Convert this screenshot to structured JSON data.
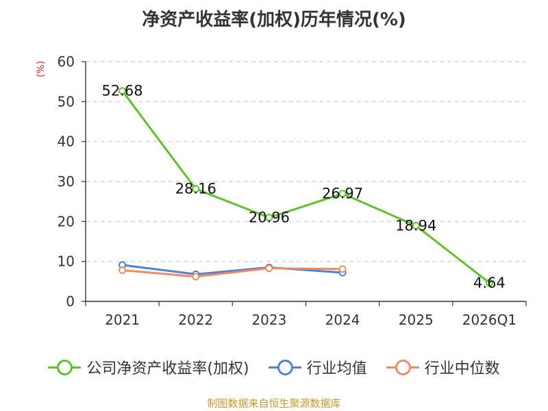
{
  "chart_data": {
    "type": "line",
    "title": "净资产收益率(加权)历年情况(%)",
    "ylabel": "(%)",
    "xlabel": "",
    "categories": [
      "2021",
      "2022",
      "2023",
      "2024",
      "2025",
      "2026Q1"
    ],
    "ylim": [
      0,
      60
    ],
    "yticks": [
      0,
      10,
      20,
      30,
      40,
      50,
      60
    ],
    "grid": true,
    "legend": "bottom",
    "series": [
      {
        "name": "公司净资产收益率(加权)",
        "color": "#5cc12a",
        "values": [
          52.68,
          28.16,
          20.96,
          26.97,
          18.94,
          4.64
        ],
        "labels": [
          "52.68",
          "28.16",
          "20.96",
          "26.97",
          "18.94",
          "4.64"
        ]
      },
      {
        "name": "行业均值",
        "color": "#4f7fd9",
        "values": [
          9.1,
          6.8,
          8.5,
          7.2,
          null,
          null
        ]
      },
      {
        "name": "行业中位数",
        "color": "#f18a5e",
        "values": [
          7.8,
          6.2,
          8.3,
          8.1,
          null,
          null
        ]
      }
    ]
  },
  "footer": {
    "source": "制图数据来自恒生聚源数据库"
  }
}
